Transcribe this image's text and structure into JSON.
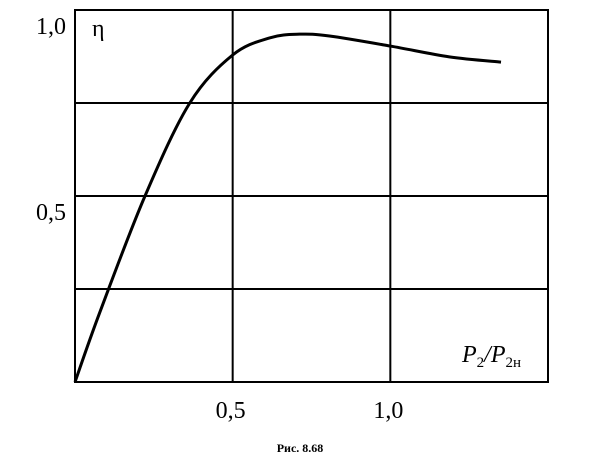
{
  "chart_data": {
    "type": "line",
    "y_label": "η",
    "x_label": [
      "P",
      "2",
      "/P",
      "2н"
    ],
    "caption": "Рис. 8.68",
    "x": [
      0,
      0.079,
      0.222,
      0.364,
      0.5,
      0.617,
      0.712,
      0.807,
      1.0,
      1.187,
      1.351
    ],
    "values": [
      0,
      0.188,
      0.5,
      0.75,
      0.879,
      0.925,
      0.935,
      0.93,
      0.903,
      0.874,
      0.86
    ],
    "color": "#000000",
    "xlim": [
      0,
      1.5
    ],
    "ylim": [
      0,
      1.0
    ],
    "xticks": [
      {
        "value": 0.5,
        "label": "0,5"
      },
      {
        "value": 1.0,
        "label": "1,0"
      }
    ],
    "yticks": [
      {
        "value": 0.5,
        "label": "0,5"
      },
      {
        "value": 1.0,
        "label": "1,0"
      }
    ],
    "xgrid": [
      0.5,
      1.0
    ],
    "ygrid": [
      0.25,
      0.5,
      0.75
    ],
    "grid": true
  }
}
